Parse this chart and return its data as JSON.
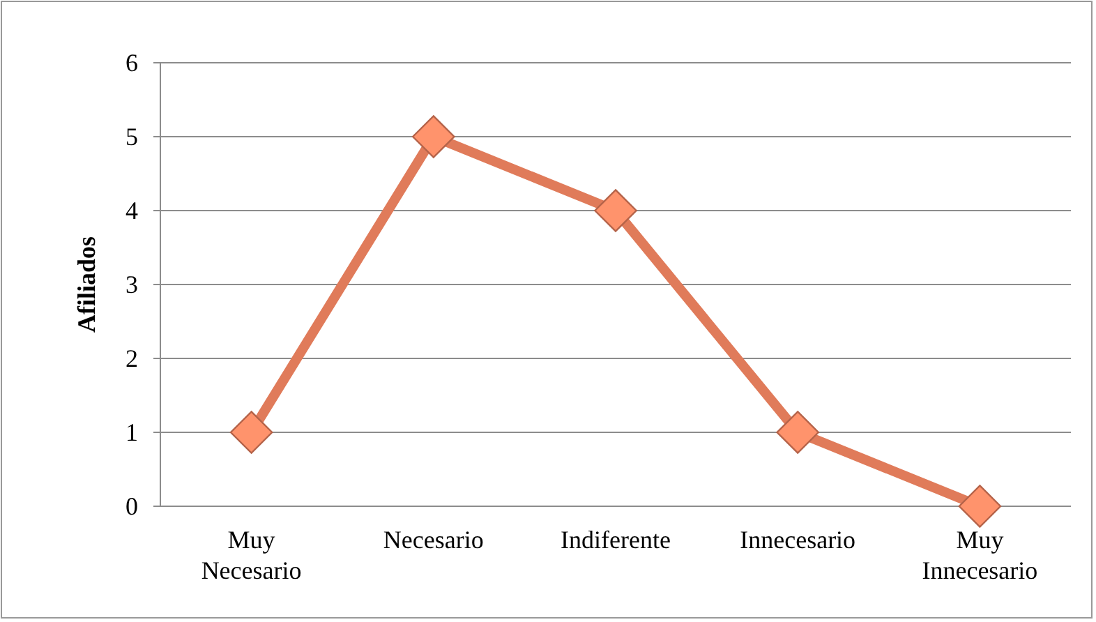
{
  "chart_data": {
    "type": "line",
    "ylabel": "Afiliados",
    "categories": [
      "Muy Necesario",
      "Necesario",
      "Indiferente",
      "Innecesario",
      "Muy Innecesario"
    ],
    "series": [
      {
        "color": "#e07b5a",
        "values": [
          1,
          5,
          4,
          1,
          0
        ]
      }
    ],
    "ylim": [
      0,
      6
    ],
    "yticks": [
      0,
      1,
      2,
      3,
      4,
      5,
      6
    ],
    "grid": "y",
    "marker": "diamond"
  }
}
